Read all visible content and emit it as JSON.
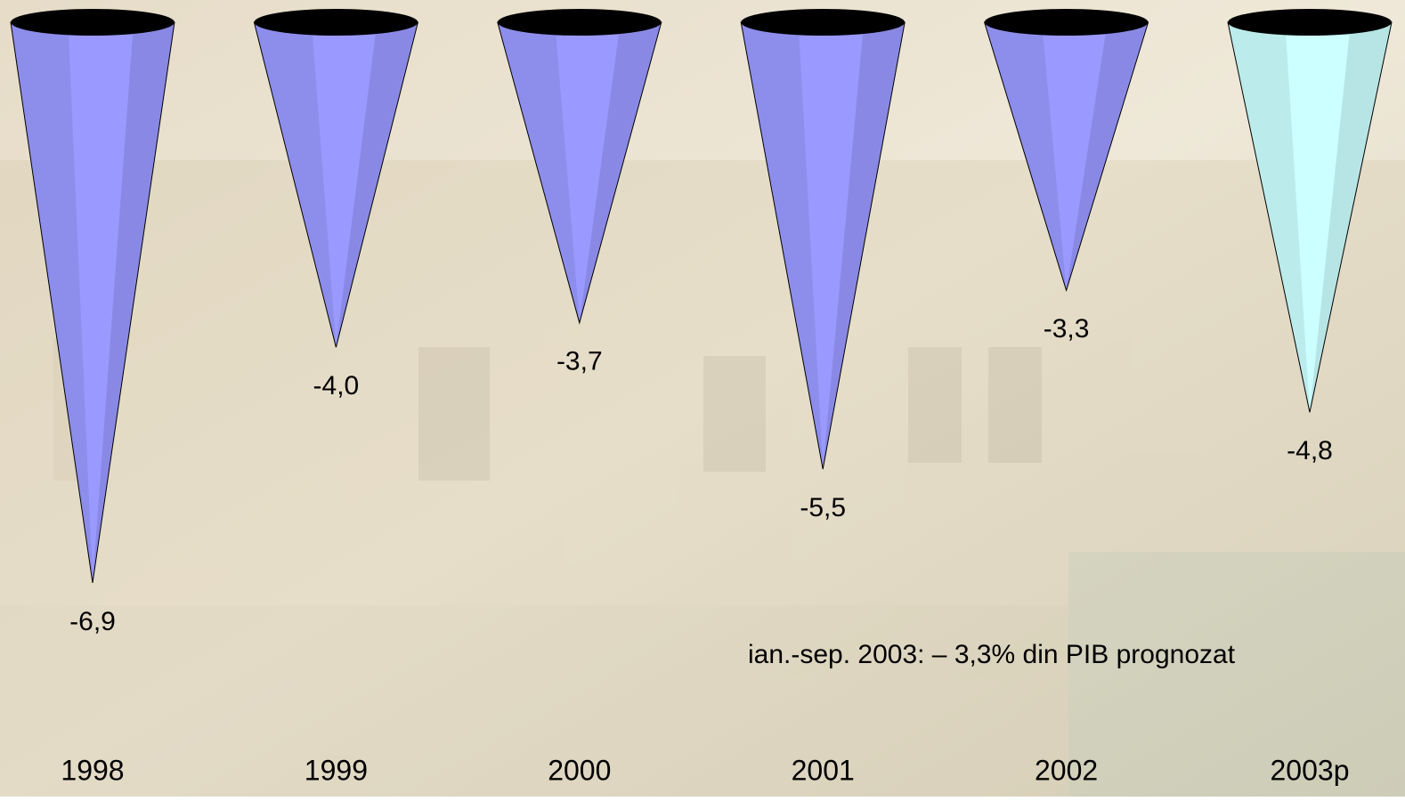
{
  "chart_data": {
    "type": "cone",
    "categories": [
      "1998",
      "1999",
      "2000",
      "2001",
      "2002",
      "2003p"
    ],
    "values": [
      -6.9,
      -4.0,
      -3.7,
      -5.5,
      -3.3,
      -4.8
    ],
    "value_labels": [
      "-6,9",
      "-4,0",
      "-3,7",
      "-5,5",
      "-3,3",
      "-4,8"
    ],
    "colors": [
      "#9999ff",
      "#9999ff",
      "#9999ff",
      "#9999ff",
      "#9999ff",
      "#ccffff"
    ],
    "annotation": "ian.-sep. 2003: – 3,3% din PIB prognozat"
  }
}
